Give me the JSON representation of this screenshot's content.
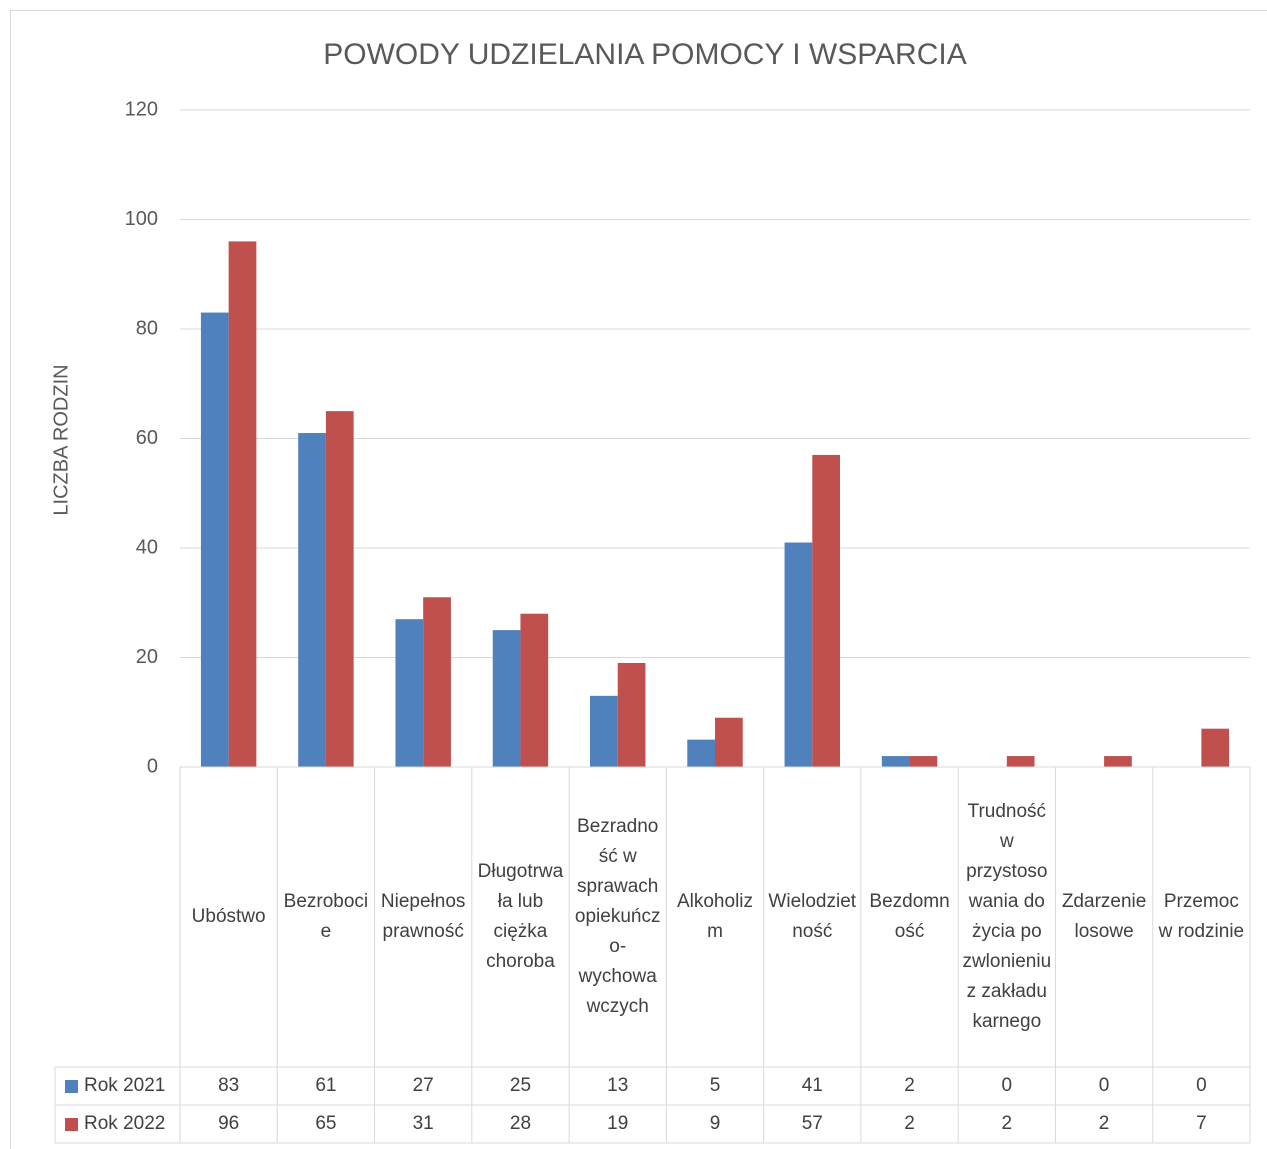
{
  "chart_data": {
    "type": "bar",
    "title": "POWODY UDZIELANIA POMOCY I WSPARCIA",
    "y_label": "LICZBA RODZIN",
    "categories": [
      "Ubóstwo",
      "Bezrobocie",
      "Niepełnosprawność",
      "Długotrwała lub ciężka choroba",
      "Bezradność w sprawach opiekuńczo-wychowawczych",
      "Alkoholizm",
      "Wielodzietność",
      "Bezdomność",
      "Trudność w przystosowania do życia po zwlonieniu z zakładu karnego",
      "Zdarzenie losowe",
      "Przemoc w rodzinie"
    ],
    "series": [
      {
        "name": "Rok 2021",
        "color": "#4f81bd",
        "values": [
          83,
          61,
          27,
          25,
          13,
          5,
          41,
          2,
          0,
          0,
          0
        ]
      },
      {
        "name": "Rok 2022",
        "color": "#c0504d",
        "values": [
          96,
          65,
          31,
          28,
          19,
          9,
          57,
          2,
          2,
          2,
          7
        ]
      }
    ],
    "ylim": [
      0,
      120
    ],
    "yticks": [
      0,
      20,
      40,
      60,
      80,
      100,
      120
    ],
    "grid": true,
    "data_table": true
  }
}
